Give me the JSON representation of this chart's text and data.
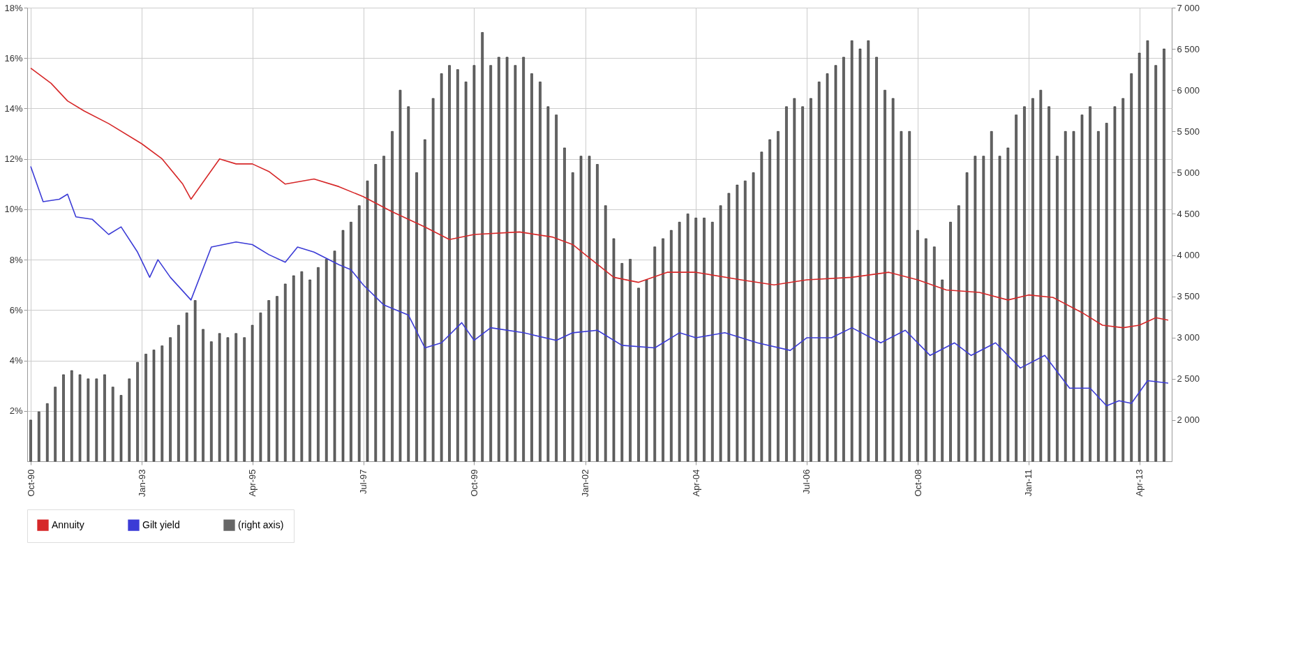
{
  "chart_data": {
    "type": "line",
    "xlim": [
      "1990-10",
      "2013-11"
    ],
    "xticks": [
      {
        "value": "1990-10",
        "label": "Oct-90"
      },
      {
        "value": "1993-01",
        "label": "Jan-93"
      },
      {
        "value": "1995-04",
        "label": "Apr-95"
      },
      {
        "value": "1997-07",
        "label": "Jul-97"
      },
      {
        "value": "1999-10",
        "label": "Oct-99"
      },
      {
        "value": "2002-01",
        "label": "Jan-02"
      },
      {
        "value": "2004-04",
        "label": "Apr-04"
      },
      {
        "value": "2006-07",
        "label": "Jul-06"
      },
      {
        "value": "2008-10",
        "label": "Oct-08"
      },
      {
        "value": "2011-01",
        "label": "Jan-11"
      },
      {
        "value": "2013-04",
        "label": "Apr-13"
      }
    ],
    "ylim": [
      0,
      18
    ],
    "yticks": [
      {
        "value": 2,
        "label": "2%"
      },
      {
        "value": 4,
        "label": "4%"
      },
      {
        "value": 6,
        "label": "6%"
      },
      {
        "value": 8,
        "label": "8%"
      },
      {
        "value": 10,
        "label": "10%"
      },
      {
        "value": 12,
        "label": "12%"
      },
      {
        "value": 14,
        "label": "14%"
      },
      {
        "value": 16,
        "label": "16%"
      },
      {
        "value": 18,
        "label": "18%"
      }
    ],
    "y2lim": [
      1500,
      7000
    ],
    "y2ticks": [
      {
        "value": 2000,
        "label": "2 000"
      },
      {
        "value": 2500,
        "label": "2 500"
      },
      {
        "value": 3000,
        "label": "3 000"
      },
      {
        "value": 3500,
        "label": "3 500"
      },
      {
        "value": 4000,
        "label": "4 000"
      },
      {
        "value": 4500,
        "label": "4 500"
      },
      {
        "value": 5000,
        "label": "5 000"
      },
      {
        "value": 5500,
        "label": "5 500"
      },
      {
        "value": 6000,
        "label": "6 000"
      },
      {
        "value": 6500,
        "label": "6 500"
      },
      {
        "value": 7000,
        "label": "7 000"
      }
    ],
    "grid": true,
    "legend": "bottom",
    "series": [
      {
        "name": "(right axis)",
        "type": "bar",
        "axis": "y2",
        "color": "#666666",
        "x": [
          "1990-10",
          "1990-12",
          "1991-02",
          "1991-04",
          "1991-06",
          "1991-08",
          "1991-10",
          "1991-12",
          "1992-02",
          "1992-04",
          "1992-06",
          "1992-08",
          "1992-10",
          "1992-12",
          "1993-02",
          "1993-04",
          "1993-06",
          "1993-08",
          "1993-10",
          "1993-12",
          "1994-02",
          "1994-04",
          "1994-06",
          "1994-08",
          "1994-10",
          "1994-12",
          "1995-02",
          "1995-04",
          "1995-06",
          "1995-08",
          "1995-10",
          "1995-12",
          "1996-02",
          "1996-04",
          "1996-06",
          "1996-08",
          "1996-10",
          "1996-12",
          "1997-02",
          "1997-04",
          "1997-06",
          "1997-08",
          "1997-10",
          "1997-12",
          "1998-02",
          "1998-04",
          "1998-06",
          "1998-08",
          "1998-10",
          "1998-12",
          "1999-02",
          "1999-04",
          "1999-06",
          "1999-08",
          "1999-10",
          "1999-12",
          "2000-02",
          "2000-04",
          "2000-06",
          "2000-08",
          "2000-10",
          "2000-12",
          "2001-02",
          "2001-04",
          "2001-06",
          "2001-08",
          "2001-10",
          "2001-12",
          "2002-02",
          "2002-04",
          "2002-06",
          "2002-08",
          "2002-10",
          "2002-12",
          "2003-02",
          "2003-04",
          "2003-06",
          "2003-08",
          "2003-10",
          "2003-12",
          "2004-02",
          "2004-04",
          "2004-06",
          "2004-08",
          "2004-10",
          "2004-12",
          "2005-02",
          "2005-04",
          "2005-06",
          "2005-08",
          "2005-10",
          "2005-12",
          "2006-02",
          "2006-04",
          "2006-06",
          "2006-08",
          "2006-10",
          "2006-12",
          "2007-02",
          "2007-04",
          "2007-06",
          "2007-08",
          "2007-10",
          "2007-12",
          "2008-02",
          "2008-04",
          "2008-06",
          "2008-08",
          "2008-10",
          "2008-12",
          "2009-02",
          "2009-04",
          "2009-06",
          "2009-08",
          "2009-10",
          "2009-12",
          "2010-02",
          "2010-04",
          "2010-06",
          "2010-08",
          "2010-10",
          "2010-12",
          "2011-02",
          "2011-04",
          "2011-06",
          "2011-08",
          "2011-10",
          "2011-12",
          "2012-02",
          "2012-04",
          "2012-06",
          "2012-08",
          "2012-10",
          "2012-12",
          "2013-02",
          "2013-04",
          "2013-06",
          "2013-08",
          "2013-10"
        ],
        "values": [
          2000,
          2100,
          2200,
          2400,
          2550,
          2600,
          2550,
          2500,
          2500,
          2550,
          2400,
          2300,
          2500,
          2700,
          2800,
          2850,
          2900,
          3000,
          3150,
          3300,
          3450,
          3100,
          2950,
          3050,
          3000,
          3050,
          3000,
          3150,
          3300,
          3450,
          3500,
          3650,
          3750,
          3800,
          3700,
          3850,
          3950,
          4050,
          4300,
          4400,
          4600,
          4900,
          5100,
          5200,
          5500,
          6000,
          5800,
          5000,
          5400,
          5900,
          6200,
          6300,
          6250,
          6100,
          6300,
          6700,
          6300,
          6400,
          6400,
          6300,
          6400,
          6200,
          6100,
          5800,
          5700,
          5300,
          5000,
          5200,
          5200,
          5100,
          4600,
          4200,
          3900,
          3950,
          3600,
          3700,
          4100,
          4200,
          4300,
          4400,
          4500,
          4450,
          4450,
          4400,
          4600,
          4750,
          4850,
          4900,
          5000,
          5250,
          5400,
          5500,
          5800,
          5900,
          5800,
          5900,
          6100,
          6200,
          6300,
          6400,
          6600,
          6500,
          6600,
          6400,
          6000,
          5900,
          5500,
          5500,
          4300,
          4200,
          4100,
          3700,
          4400,
          4600,
          5000,
          5200,
          5200,
          5500,
          5200,
          5300,
          5700,
          5800,
          5900,
          6000,
          5800,
          5200,
          5500,
          5500,
          5700,
          5800,
          5500,
          5600,
          5800,
          5900,
          6200,
          6450,
          6600,
          6300,
          6500
        ]
      },
      {
        "name": "Annuity",
        "color": "#d62728",
        "x": [
          "1990-10",
          "1991-03",
          "1991-07",
          "1991-11",
          "1992-05",
          "1993-01",
          "1993-06",
          "1993-11",
          "1994-01",
          "1994-08",
          "1994-12",
          "1995-04",
          "1995-08",
          "1995-12",
          "1996-07",
          "1997-01",
          "1997-07",
          "1998-02",
          "1998-10",
          "1999-04",
          "1999-10",
          "2000-09",
          "2001-05",
          "2001-10",
          "2002-01",
          "2002-08",
          "2003-02",
          "2003-09",
          "2004-04",
          "2005-03",
          "2005-11",
          "2006-07",
          "2007-06",
          "2008-03",
          "2008-10",
          "2009-05",
          "2010-01",
          "2010-08",
          "2011-01",
          "2011-07",
          "2012-02",
          "2012-07",
          "2012-12",
          "2013-04",
          "2013-08",
          "2013-11"
        ],
        "values": [
          15.6,
          15.0,
          14.3,
          13.9,
          13.4,
          12.6,
          12.0,
          11.0,
          10.4,
          12.0,
          11.8,
          11.8,
          11.5,
          11.0,
          11.2,
          10.9,
          10.5,
          9.9,
          9.3,
          8.8,
          9.0,
          9.1,
          8.9,
          8.6,
          8.2,
          7.3,
          7.1,
          7.5,
          7.5,
          7.2,
          7.0,
          7.2,
          7.3,
          7.5,
          7.2,
          6.8,
          6.7,
          6.4,
          6.6,
          6.5,
          5.9,
          5.4,
          5.3,
          5.4,
          5.7,
          5.6
        ]
      },
      {
        "name": "Gilt yield",
        "color": "#3b3bd6",
        "x": [
          "1990-10",
          "1991-01",
          "1991-05",
          "1991-07",
          "1991-09",
          "1992-01",
          "1992-05",
          "1992-08",
          "1992-12",
          "1993-03",
          "1993-05",
          "1993-08",
          "1994-01",
          "1994-06",
          "1994-12",
          "1995-04",
          "1995-08",
          "1995-12",
          "1996-03",
          "1996-07",
          "1997-01",
          "1997-04",
          "1997-07",
          "1997-12",
          "1998-06",
          "1998-10",
          "1999-02",
          "1999-07",
          "1999-10",
          "2000-02",
          "2000-10",
          "2001-06",
          "2001-10",
          "2002-04",
          "2002-10",
          "2003-06",
          "2003-12",
          "2004-04",
          "2004-11",
          "2005-07",
          "2006-03",
          "2006-07",
          "2007-01",
          "2007-06",
          "2008-01",
          "2008-07",
          "2009-01",
          "2009-07",
          "2009-11",
          "2010-05",
          "2010-11",
          "2011-05",
          "2011-11",
          "2012-04",
          "2012-08",
          "2012-11",
          "2013-02",
          "2013-06",
          "2013-11"
        ],
        "values": [
          11.7,
          10.3,
          10.4,
          10.6,
          9.7,
          9.6,
          9.0,
          9.3,
          8.3,
          7.3,
          8.0,
          7.3,
          6.4,
          8.5,
          8.7,
          8.6,
          8.2,
          7.9,
          8.5,
          8.3,
          7.8,
          7.6,
          7.0,
          6.2,
          5.8,
          4.5,
          4.7,
          5.5,
          4.8,
          5.3,
          5.1,
          4.8,
          5.1,
          5.2,
          4.6,
          4.5,
          5.1,
          4.9,
          5.1,
          4.7,
          4.4,
          4.9,
          4.9,
          5.3,
          4.7,
          5.2,
          4.2,
          4.7,
          4.2,
          4.7,
          3.7,
          4.2,
          2.9,
          2.9,
          2.2,
          2.4,
          2.3,
          3.2,
          3.1
        ]
      }
    ]
  }
}
